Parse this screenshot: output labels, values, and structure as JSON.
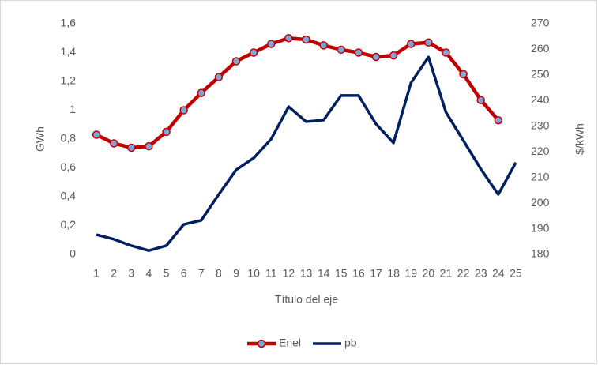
{
  "chart_data": {
    "type": "line",
    "xlabel": "Título del eje",
    "ylabel": "GWh",
    "y2label": "$/kWh",
    "categories": [
      1,
      2,
      3,
      4,
      5,
      6,
      7,
      8,
      9,
      10,
      11,
      12,
      13,
      14,
      15,
      16,
      17,
      18,
      19,
      20,
      21,
      22,
      23,
      24,
      25
    ],
    "series": [
      {
        "name": "Enel",
        "color": "#c00000",
        "marker_color": "#7fa3d6",
        "axis": "y",
        "values": [
          0.83,
          0.77,
          0.74,
          0.75,
          0.85,
          1.0,
          1.12,
          1.23,
          1.34,
          1.4,
          1.46,
          1.5,
          1.49,
          1.45,
          1.42,
          1.4,
          1.37,
          1.38,
          1.46,
          1.47,
          1.4,
          1.25,
          1.07,
          0.93,
          null
        ]
      },
      {
        "name": "pb",
        "color": "#002060",
        "axis": "y2",
        "values": [
          187.7,
          185.9,
          183.4,
          181.5,
          183.4,
          191.7,
          193.3,
          203.4,
          213.0,
          217.6,
          225.0,
          237.6,
          231.8,
          232.4,
          242.0,
          242.0,
          230.9,
          223.5,
          246.9,
          257.0,
          235.5,
          224.4,
          213.3,
          203.4,
          215.8
        ]
      }
    ],
    "ylim": [
      0,
      1.6
    ],
    "yticks": [
      0,
      {
        "value": 0.2,
        "label": "0,2"
      },
      {
        "value": 0.4,
        "label": "0,4"
      },
      {
        "value": 0.6,
        "label": "0,6"
      },
      {
        "value": 0.8,
        "label": "0,8"
      },
      1,
      {
        "value": 1.2,
        "label": "1,2"
      },
      {
        "value": 1.4,
        "label": "1,4"
      },
      {
        "value": 1.6,
        "label": "1,6"
      }
    ],
    "y2lim": [
      180,
      270
    ],
    "y2ticks": [
      180,
      190,
      200,
      210,
      220,
      230,
      240,
      250,
      260,
      270
    ],
    "grid": false,
    "legend": "bottom"
  }
}
